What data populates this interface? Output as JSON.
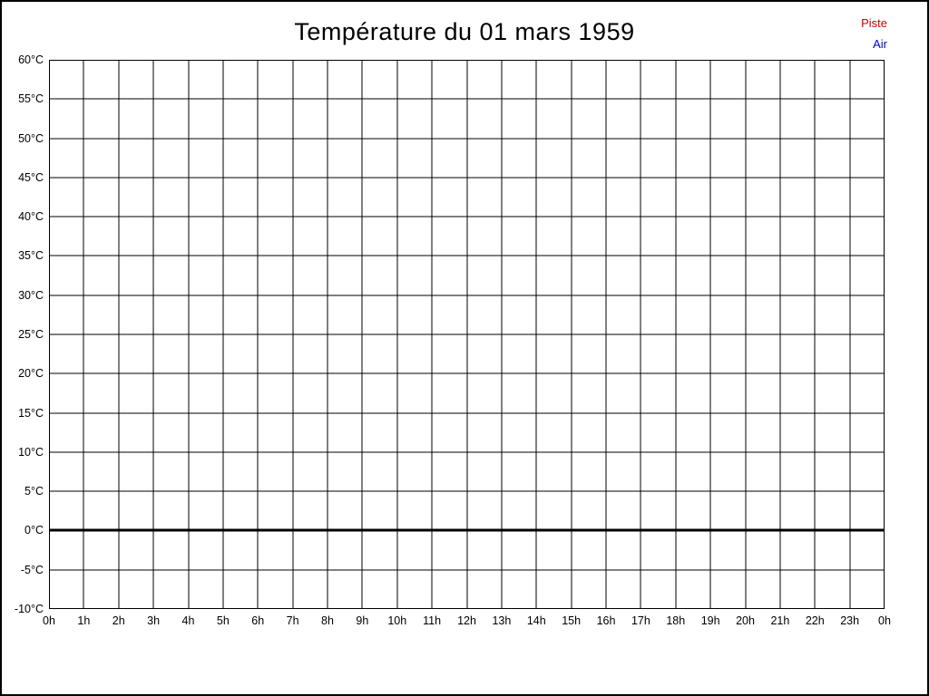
{
  "title": "Température du 01 mars 1959",
  "legend": [
    {
      "label": "Piste",
      "color": "#cc0000"
    },
    {
      "label": "Air",
      "color": "#0000cc"
    }
  ],
  "chart_data": {
    "type": "line",
    "title": "Température du 01 mars 1959",
    "x_ticks": [
      "0h",
      "1h",
      "2h",
      "3h",
      "4h",
      "5h",
      "6h",
      "7h",
      "8h",
      "9h",
      "10h",
      "11h",
      "12h",
      "13h",
      "14h",
      "15h",
      "16h",
      "17h",
      "18h",
      "19h",
      "20h",
      "21h",
      "22h",
      "23h",
      "0h"
    ],
    "y_ticks": [
      "60°C",
      "55°C",
      "50°C",
      "45°C",
      "40°C",
      "35°C",
      "30°C",
      "25°C",
      "20°C",
      "15°C",
      "10°C",
      "5°C",
      "0°C",
      "-5°C",
      "-10°C"
    ],
    "y_min": -10,
    "y_max": 60,
    "y_step": 5,
    "zero_line_value": 0,
    "grid": true,
    "grid_color": "#000000",
    "background": "#ffffff",
    "legend_position": "top-right",
    "series": [
      {
        "name": "Piste",
        "color": "#cc0000",
        "values": []
      },
      {
        "name": "Air",
        "color": "#0000cc",
        "values": []
      }
    ]
  }
}
